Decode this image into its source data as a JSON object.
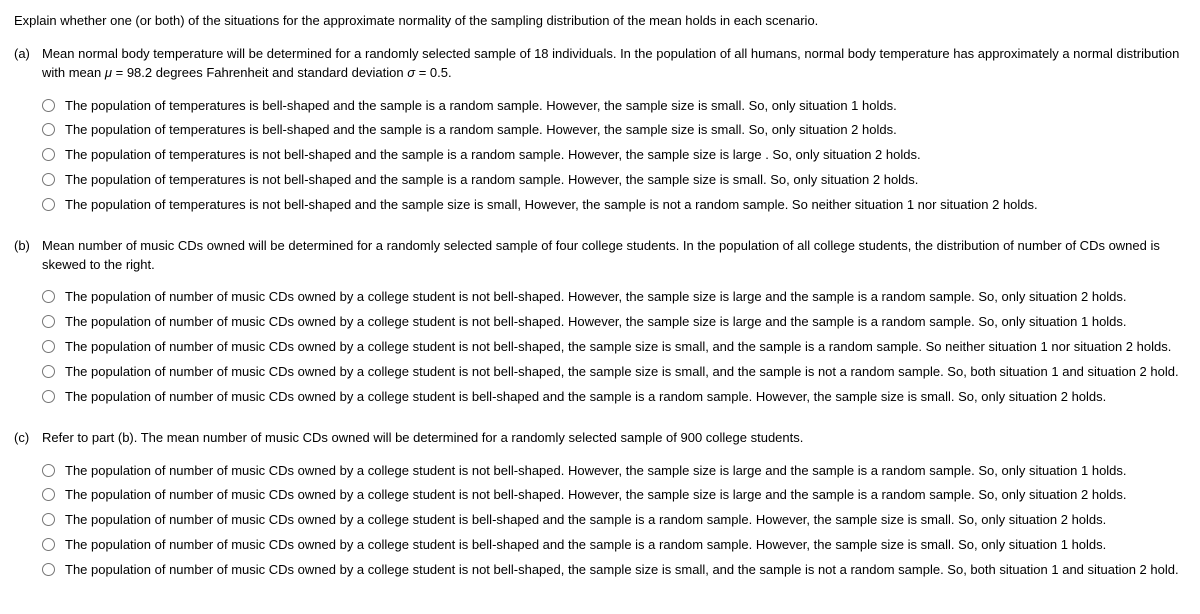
{
  "intro": "Explain whether one (or both) of the situations for the approximate normality of the sampling distribution of the mean holds in each scenario.",
  "parts": {
    "a": {
      "label": "(a)",
      "prompt_pre": "Mean normal body temperature will be determined for a randomly selected sample of 18 individuals. In the population of all humans, normal body temperature has approximately a normal distribution with mean ",
      "mu_sym": "μ",
      "mu_eq": " = 98.2 degrees Fahrenheit and standard deviation ",
      "sigma_sym": "σ",
      "sigma_eq": " = 0.5.",
      "options": [
        "The population of temperatures is bell-shaped and the sample is a random sample. However, the sample size is small. So, only situation 1 holds.",
        "The population of temperatures is bell-shaped and the sample is a random sample. However, the sample size is small. So, only situation 2 holds.",
        "The population of temperatures is not bell-shaped and the sample is a random sample. However, the sample size is large . So, only situation 2 holds.",
        "The population of temperatures is not bell-shaped and the sample is a random sample. However, the sample size is small. So, only situation 2 holds.",
        "The population of temperatures is not bell-shaped and the sample size is small, However, the sample is not a random sample. So neither situation 1 nor situation 2 holds."
      ]
    },
    "b": {
      "label": "(b)",
      "prompt": "Mean number of music CDs owned will be determined for a randomly selected sample of four college students. In the population of all college students, the distribution of number of CDs owned is skewed to the right.",
      "options": [
        "The population of number of music CDs owned by a college student is not bell-shaped. However, the sample size is large and the sample is a random sample. So, only situation 2 holds.",
        "The population of number of music CDs owned by a college student is not bell-shaped. However, the sample size is large and the sample is a random sample. So, only situation 1 holds.",
        "The population of number of music CDs owned by a college student is not bell-shaped, the sample size is small, and the sample is a random sample. So neither situation 1 nor situation 2 holds.",
        "The population of number of music CDs owned by a college student is not bell-shaped, the sample size is small, and the sample is not a random sample. So, both situation 1 and situation 2 hold.",
        "The population of number of music CDs owned by a college student is bell-shaped and the sample is a random sample. However, the sample size is small. So, only situation 2 holds."
      ]
    },
    "c": {
      "label": "(c)",
      "prompt": "Refer to part (b). The mean number of music CDs owned will be determined for a randomly selected sample of 900 college students.",
      "options": [
        "The population of number of music CDs owned by a college student is not bell-shaped. However, the sample size is large and the sample is a random sample. So, only situation 1 holds.",
        "The population of number of music CDs owned by a college student is not bell-shaped. However, the sample size is large and the sample is a random sample. So, only situation 2 holds.",
        "The population of number of music CDs owned by a college student is bell-shaped and the sample is a random sample. However, the sample size is small. So, only situation 2 holds.",
        "The population of number of music CDs owned by a college student is bell-shaped and the sample is a random sample. However, the sample size is small. So, only situation 1 holds.",
        "The population of number of music CDs owned by a college student is not bell-shaped, the sample size is small, and the sample is not a random sample. So, both situation 1 and situation 2 hold."
      ]
    }
  }
}
